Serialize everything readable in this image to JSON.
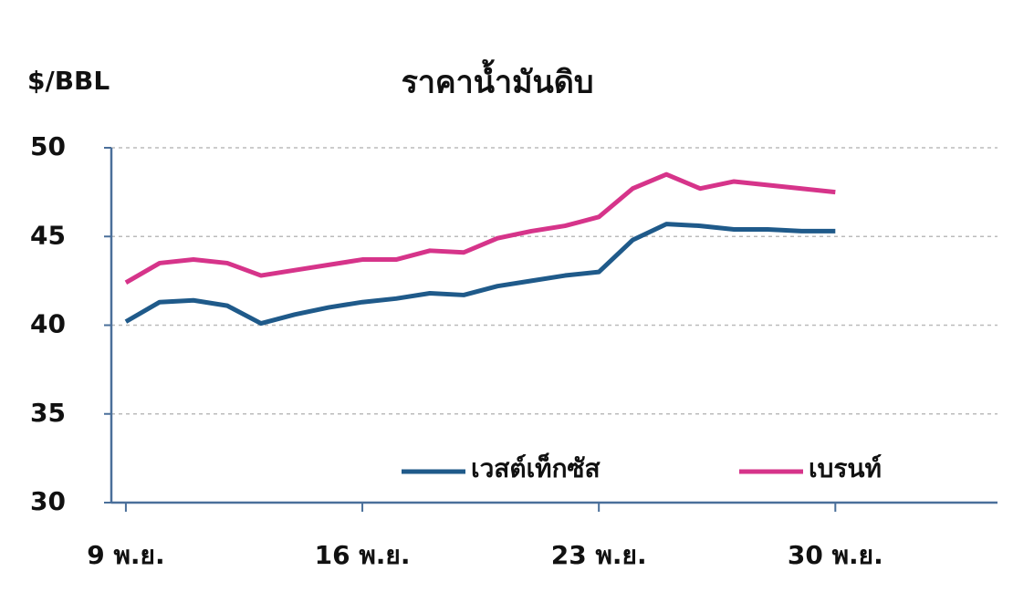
{
  "chart_data": {
    "type": "line",
    "title": "ราคาน้ำมันดิบ",
    "y_label": "$/BBL",
    "x": [
      9,
      10,
      11,
      12,
      13,
      14,
      15,
      16,
      17,
      18,
      19,
      20,
      21,
      22,
      23,
      24,
      25,
      26,
      27,
      28,
      29,
      30
    ],
    "xlim": [
      8.57,
      34.8
    ],
    "xticks": [
      {
        "value": 9,
        "label": "9 พ.ย."
      },
      {
        "value": 16,
        "label": "16 พ.ย."
      },
      {
        "value": 23,
        "label": "23 พ.ย."
      },
      {
        "value": 30,
        "label": "30 พ.ย."
      }
    ],
    "ylim": [
      30,
      50
    ],
    "yticks": [
      30,
      35,
      40,
      45,
      50
    ],
    "grid": true,
    "legend": "lower right",
    "series": [
      {
        "name": "เวสต์เท็กซัส",
        "color": "#1f5a8a",
        "values": [
          40.2,
          41.3,
          41.4,
          41.1,
          40.1,
          40.6,
          41.0,
          41.3,
          41.5,
          41.8,
          41.7,
          42.2,
          42.5,
          42.8,
          43.0,
          44.8,
          45.7,
          45.6,
          45.4,
          45.4,
          45.3,
          45.3
        ]
      },
      {
        "name": "เบรนท์",
        "color": "#d6348a",
        "values": [
          42.4,
          43.5,
          43.7,
          43.5,
          42.8,
          43.1,
          43.4,
          43.7,
          43.7,
          44.2,
          44.1,
          44.9,
          45.3,
          45.6,
          46.1,
          47.7,
          48.5,
          47.7,
          48.1,
          47.9,
          47.7,
          47.5
        ]
      }
    ]
  }
}
